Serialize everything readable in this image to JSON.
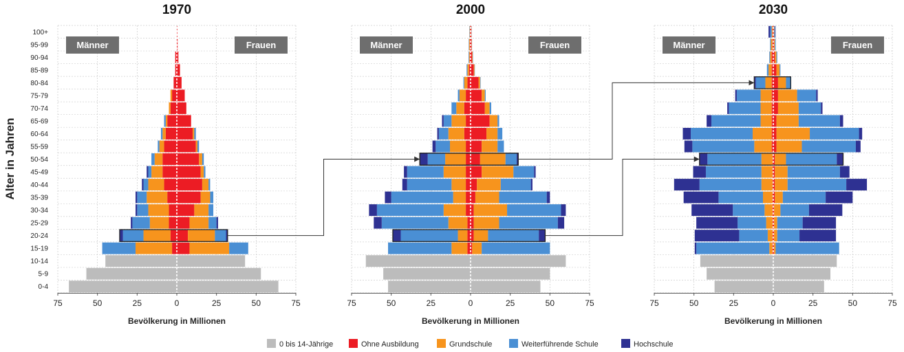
{
  "colors": {
    "kids": "#bcbcbc",
    "none": "#ec1c24",
    "primary": "#f7941d",
    "secondary": "#4a8fd4",
    "higher": "#2e3192",
    "sexbox": "#6e6e6e"
  },
  "chart_data": {
    "type": "bar",
    "subtype": "population-pyramid",
    "age_groups": [
      "0-4",
      "5-9",
      "10-14",
      "15-19",
      "20-24",
      "25-29",
      "30-34",
      "35-39",
      "40-44",
      "45-49",
      "50-54",
      "55-59",
      "60-64",
      "65-69",
      "70-74",
      "75-79",
      "80-84",
      "85-89",
      "90-94",
      "95-99",
      "100+"
    ],
    "y_label": "Alter in Jahren",
    "x_label": "Bevölkerung in Millionen",
    "x_ticks": [
      75,
      50,
      25,
      0,
      25,
      50,
      75
    ],
    "xlim": [
      -75,
      75
    ],
    "categories": [
      "0 bis 14-Jährige",
      "Ohne Ausbildung",
      "Grundschule",
      "Weiterführende Schule",
      "Hochschule"
    ],
    "left_label": "Männer",
    "right_label": "Frauen",
    "panels": [
      {
        "title": "1970",
        "male": [
          {
            "kids": 68
          },
          {
            "kids": 57
          },
          {
            "kids": 45
          },
          {
            "none": 3,
            "primary": 23,
            "secondary": 21,
            "higher": 0
          },
          {
            "none": 4,
            "primary": 17,
            "secondary": 13,
            "higher": 2
          },
          {
            "none": 5,
            "primary": 12,
            "secondary": 11,
            "higher": 1
          },
          {
            "none": 5,
            "primary": 13,
            "secondary": 7,
            "higher": 1
          },
          {
            "none": 6,
            "primary": 13,
            "secondary": 6,
            "higher": 1
          },
          {
            "none": 8,
            "primary": 10,
            "secondary": 3,
            "higher": 1
          },
          {
            "none": 9,
            "primary": 7,
            "secondary": 2,
            "higher": 1
          },
          {
            "none": 9,
            "primary": 5,
            "secondary": 2,
            "higher": 0
          },
          {
            "none": 8,
            "primary": 3,
            "secondary": 1,
            "higher": 0
          },
          {
            "none": 7,
            "primary": 2,
            "secondary": 1,
            "higher": 0
          },
          {
            "none": 6,
            "primary": 1,
            "secondary": 1,
            "higher": 0
          },
          {
            "none": 4,
            "primary": 1,
            "secondary": 0,
            "higher": 0
          },
          {
            "none": 3,
            "primary": 1,
            "secondary": 0,
            "higher": 0
          },
          {
            "none": 2,
            "primary": 0,
            "secondary": 0,
            "higher": 0
          },
          {
            "none": 1,
            "primary": 0,
            "secondary": 0,
            "higher": 0
          },
          {
            "none": 1,
            "primary": 0,
            "secondary": 0,
            "higher": 0
          },
          {
            "none": 0,
            "primary": 0,
            "secondary": 0,
            "higher": 0
          },
          {
            "none": 0,
            "primary": 0,
            "secondary": 0,
            "higher": 0
          }
        ],
        "female": [
          {
            "kids": 64
          },
          {
            "kids": 53
          },
          {
            "kids": 43
          },
          {
            "none": 8,
            "primary": 25,
            "secondary": 12,
            "higher": 0
          },
          {
            "none": 7,
            "primary": 17,
            "secondary": 7,
            "higher": 1
          },
          {
            "none": 8,
            "primary": 12,
            "secondary": 5,
            "higher": 1
          },
          {
            "none": 11,
            "primary": 9,
            "secondary": 3,
            "higher": 0
          },
          {
            "none": 15,
            "primary": 6,
            "secondary": 2,
            "higher": 0
          },
          {
            "none": 16,
            "primary": 4,
            "secondary": 1,
            "higher": 0
          },
          {
            "none": 15,
            "primary": 2,
            "secondary": 1,
            "higher": 0
          },
          {
            "none": 14,
            "primary": 2,
            "secondary": 1,
            "higher": 0
          },
          {
            "none": 12,
            "primary": 1,
            "secondary": 1,
            "higher": 0
          },
          {
            "none": 10,
            "primary": 1,
            "secondary": 1,
            "higher": 0
          },
          {
            "none": 9,
            "primary": 0,
            "secondary": 0,
            "higher": 0
          },
          {
            "none": 6,
            "primary": 0,
            "secondary": 0,
            "higher": 0
          },
          {
            "none": 5,
            "primary": 0,
            "secondary": 0,
            "higher": 0
          },
          {
            "none": 3,
            "primary": 0,
            "secondary": 0,
            "higher": 0
          },
          {
            "none": 2,
            "primary": 0,
            "secondary": 0,
            "higher": 0
          },
          {
            "none": 1,
            "primary": 0,
            "secondary": 0,
            "higher": 0
          },
          {
            "none": 0.5,
            "primary": 0,
            "secondary": 0,
            "higher": 0
          },
          {
            "none": 0.3,
            "primary": 0,
            "secondary": 0,
            "higher": 0
          }
        ]
      },
      {
        "title": "2000",
        "male": [
          {
            "kids": 52
          },
          {
            "kids": 55
          },
          {
            "kids": 66
          },
          {
            "none": 2,
            "primary": 10,
            "secondary": 40,
            "higher": 0
          },
          {
            "none": 2,
            "primary": 6,
            "secondary": 36,
            "higher": 5
          },
          {
            "none": 2,
            "primary": 12,
            "secondary": 42,
            "higher": 5
          },
          {
            "none": 3,
            "primary": 14,
            "secondary": 42,
            "higher": 5
          },
          {
            "none": 3,
            "primary": 8,
            "secondary": 39,
            "higher": 4
          },
          {
            "none": 3,
            "primary": 9,
            "secondary": 28,
            "higher": 3
          },
          {
            "none": 3,
            "primary": 14,
            "secondary": 23,
            "higher": 2
          },
          {
            "none": 3,
            "primary": 13,
            "secondary": 11,
            "higher": 5
          },
          {
            "none": 3,
            "primary": 10,
            "secondary": 9,
            "higher": 2
          },
          {
            "none": 4,
            "primary": 10,
            "secondary": 6,
            "higher": 1
          },
          {
            "none": 3,
            "primary": 9,
            "secondary": 5,
            "higher": 1
          },
          {
            "none": 4,
            "primary": 5,
            "secondary": 3,
            "higher": 0
          },
          {
            "none": 3,
            "primary": 4,
            "secondary": 1,
            "higher": 0
          },
          {
            "none": 2,
            "primary": 2,
            "secondary": 0.5,
            "higher": 0
          },
          {
            "none": 1,
            "primary": 1,
            "secondary": 0.5,
            "higher": 0
          },
          {
            "none": 0.5,
            "primary": 0.5,
            "secondary": 0.3,
            "higher": 0
          },
          {
            "none": 0.5,
            "primary": 0.5,
            "secondary": 0.2,
            "higher": 0
          },
          {
            "none": 0.3,
            "primary": 0.3,
            "secondary": 0.2,
            "higher": 0
          }
        ],
        "female": [
          {
            "kids": 44
          },
          {
            "kids": 50
          },
          {
            "kids": 60
          },
          {
            "none": 1,
            "primary": 6,
            "secondary": 43,
            "higher": 0
          },
          {
            "none": 2,
            "primary": 9,
            "secondary": 32,
            "higher": 4
          },
          {
            "none": 2,
            "primary": 16,
            "secondary": 37,
            "higher": 4
          },
          {
            "none": 2,
            "primary": 21,
            "secondary": 34,
            "higher": 3
          },
          {
            "none": 3,
            "primary": 15,
            "secondary": 30,
            "higher": 2
          },
          {
            "none": 4,
            "primary": 15,
            "secondary": 19,
            "higher": 1
          },
          {
            "none": 7,
            "primary": 20,
            "secondary": 13,
            "higher": 1
          },
          {
            "none": 6,
            "primary": 16,
            "secondary": 7,
            "higher": 1
          },
          {
            "none": 7,
            "primary": 10,
            "secondary": 4,
            "higher": 0
          },
          {
            "none": 10,
            "primary": 7,
            "secondary": 3,
            "higher": 0
          },
          {
            "none": 12,
            "primary": 5,
            "secondary": 1,
            "higher": 0
          },
          {
            "none": 9,
            "primary": 3,
            "secondary": 1,
            "higher": 0
          },
          {
            "none": 7,
            "primary": 2,
            "secondary": 0.5,
            "higher": 0
          },
          {
            "none": 5,
            "primary": 1,
            "secondary": 0.3,
            "higher": 0
          },
          {
            "none": 2,
            "primary": 0.5,
            "secondary": 0.2,
            "higher": 0
          },
          {
            "none": 1,
            "primary": 0.3,
            "secondary": 0.2,
            "higher": 0
          },
          {
            "none": 0.6,
            "primary": 0.2,
            "secondary": 0.1,
            "higher": 0
          },
          {
            "none": 0.5,
            "primary": 0.1,
            "secondary": 0.1,
            "higher": 0
          }
        ]
      },
      {
        "title": "2030",
        "male": [
          {
            "kids": 37
          },
          {
            "kids": 42
          },
          {
            "kids": 46
          },
          {
            "none": 0.5,
            "primary": 2,
            "secondary": 46,
            "higher": 1
          },
          {
            "none": 0.5,
            "primary": 3,
            "secondary": 18,
            "higher": 28
          },
          {
            "none": 0.5,
            "primary": 4,
            "secondary": 18,
            "higher": 26
          },
          {
            "none": 0.5,
            "primary": 5,
            "secondary": 20,
            "higher": 26
          },
          {
            "none": 0.5,
            "primary": 6,
            "secondary": 28,
            "higher": 22
          },
          {
            "none": 0.5,
            "primary": 7,
            "secondary": 39,
            "higher": 16
          },
          {
            "none": 0.5,
            "primary": 7,
            "secondary": 35,
            "higher": 8
          },
          {
            "none": 0.5,
            "primary": 7,
            "secondary": 34,
            "higher": 5
          },
          {
            "none": 1,
            "primary": 11,
            "secondary": 39,
            "higher": 5
          },
          {
            "none": 1,
            "primary": 12,
            "secondary": 39,
            "higher": 5
          },
          {
            "none": 1,
            "primary": 7,
            "secondary": 31,
            "higher": 3
          },
          {
            "none": 1,
            "primary": 7,
            "secondary": 20,
            "higher": 1
          },
          {
            "none": 1,
            "primary": 7,
            "secondary": 15,
            "higher": 1
          },
          {
            "none": 1,
            "primary": 4,
            "secondary": 6,
            "higher": 1
          },
          {
            "none": 1,
            "primary": 2,
            "secondary": 1,
            "higher": 0
          },
          {
            "none": 1,
            "primary": 1,
            "secondary": 0.5,
            "higher": 0
          },
          {
            "none": 0.5,
            "primary": 1,
            "secondary": 0.5,
            "higher": 0
          },
          {
            "none": 0.5,
            "primary": 0.5,
            "secondary": 1,
            "higher": 1
          }
        ],
        "female": [
          {
            "kids": 32
          },
          {
            "kids": 36
          },
          {
            "kids": 40
          },
          {
            "none": 0.5,
            "primary": 1,
            "secondary": 40,
            "higher": 0
          },
          {
            "none": 0.5,
            "primary": 2,
            "secondary": 14,
            "higher": 23
          },
          {
            "none": 0.5,
            "primary": 2,
            "secondary": 16,
            "higher": 21
          },
          {
            "none": 0.5,
            "primary": 4,
            "secondary": 18,
            "higher": 21
          },
          {
            "none": 1,
            "primary": 5,
            "secondary": 27,
            "higher": 17
          },
          {
            "none": 1,
            "primary": 8,
            "secondary": 37,
            "higher": 13
          },
          {
            "none": 1,
            "primary": 8,
            "secondary": 33,
            "higher": 6
          },
          {
            "none": 1,
            "primary": 7,
            "secondary": 32,
            "higher": 4
          },
          {
            "none": 2,
            "primary": 16,
            "secondary": 34,
            "higher": 3
          },
          {
            "none": 2,
            "primary": 21,
            "secondary": 31,
            "higher": 2
          },
          {
            "none": 2,
            "primary": 14,
            "secondary": 26,
            "higher": 2
          },
          {
            "none": 3,
            "primary": 13,
            "secondary": 14,
            "higher": 1
          },
          {
            "none": 3,
            "primary": 12,
            "secondary": 12,
            "higher": 1
          },
          {
            "none": 3,
            "primary": 5,
            "secondary": 3,
            "higher": 0
          },
          {
            "none": 2,
            "primary": 2,
            "secondary": 0.5,
            "higher": 0
          },
          {
            "none": 1,
            "primary": 1,
            "secondary": 0.5,
            "higher": 0
          },
          {
            "none": 0.5,
            "primary": 0.5,
            "secondary": 0.5,
            "higher": 0
          },
          {
            "none": 0.3,
            "primary": 0.3,
            "secondary": 0.5,
            "higher": 0.3
          }
        ]
      }
    ],
    "cohort_links": [
      {
        "from_panel": 0,
        "from_age": "20-24",
        "to_panel": 1,
        "to_age": "50-54"
      },
      {
        "from_panel": 1,
        "from_age": "20-24",
        "to_panel": 2,
        "to_age": "50-54"
      },
      {
        "from_panel": 1,
        "from_age": "50-54",
        "to_panel": 2,
        "to_age": "80-84"
      }
    ],
    "legend_position": "bottom-center"
  }
}
